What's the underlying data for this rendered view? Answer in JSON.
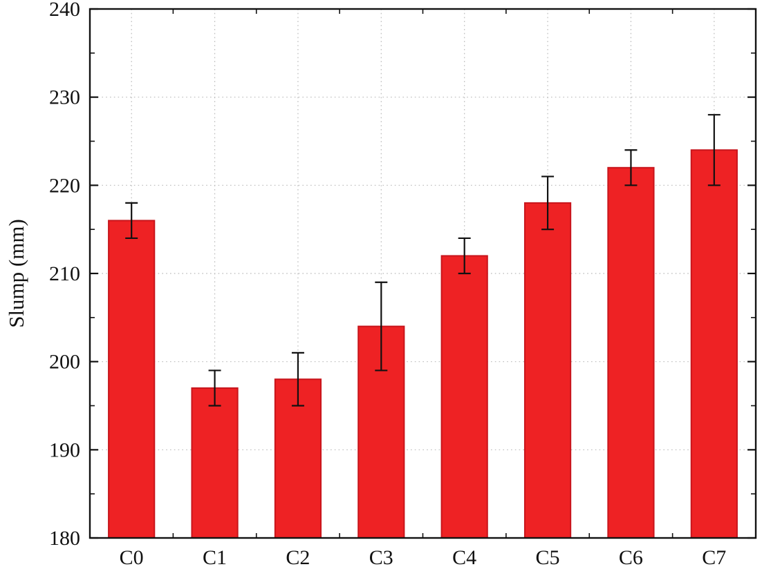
{
  "chart_data": {
    "type": "bar",
    "categories": [
      "C0",
      "C1",
      "C2",
      "C3",
      "C4",
      "C5",
      "C6",
      "C7"
    ],
    "values": [
      216,
      197,
      198,
      204,
      212,
      218,
      222,
      224
    ],
    "errors": [
      2,
      2,
      3,
      5,
      2,
      3,
      2,
      4
    ],
    "title": "",
    "xlabel": "",
    "ylabel": "Slump (mm)",
    "ylim": [
      180,
      240
    ],
    "ytick_step": 10,
    "minor_tick_step": 5,
    "grid": "dotted horizontal and vertical",
    "legend": "none",
    "bar_color": "#ee2224",
    "bar_edge_color": "#c8151c",
    "error_bar_color": "#111111",
    "axis_color": "#111111",
    "grid_color": "#b9b9b9",
    "tick_label_color": "#111111"
  }
}
